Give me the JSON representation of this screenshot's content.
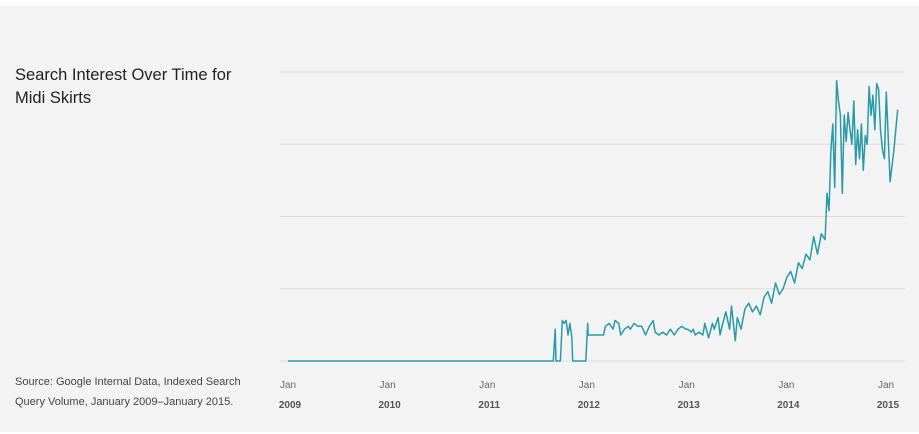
{
  "title": "Search Interest Over Time for Midi Skirts",
  "source": "Source: Google Internal Data, Indexed Search Query Volume, January 2009–January 2015.",
  "colors": {
    "line": "#2a9aa8",
    "grid": "#dcdcdc",
    "background": "#f3f3f3"
  },
  "chart_data": {
    "type": "line",
    "title": "Search Interest Over Time for Midi Skirts",
    "xlabel": "",
    "ylabel": "",
    "x_ticks": [
      {
        "date": "2009-01-01",
        "month": "Jan",
        "year": "2009"
      },
      {
        "date": "2010-01-01",
        "month": "Jan",
        "year": "2010"
      },
      {
        "date": "2011-01-01",
        "month": "Jan",
        "year": "2011"
      },
      {
        "date": "2012-01-01",
        "month": "Jan",
        "year": "2012"
      },
      {
        "date": "2013-01-01",
        "month": "Jan",
        "year": "2013"
      },
      {
        "date": "2014-01-01",
        "month": "Jan",
        "year": "2014"
      },
      {
        "date": "2015-01-01",
        "month": "Jan",
        "year": "2015"
      }
    ],
    "xlim": [
      "2009-01-01",
      "2015-03-01"
    ],
    "ylim": [
      0,
      100
    ],
    "grid": true,
    "y_gridlines": [
      0,
      25,
      50,
      75,
      100
    ],
    "legend": "none",
    "series": [
      {
        "values": [
          [
            "2009-01-01",
            0
          ],
          [
            "2009-07-01",
            0
          ],
          [
            "2010-01-01",
            0
          ],
          [
            "2010-07-01",
            0
          ],
          [
            "2011-01-01",
            0
          ],
          [
            "2011-07-01",
            0
          ],
          [
            "2011-08-31",
            0
          ],
          [
            "2011-09-07",
            11
          ],
          [
            "2011-09-10",
            0
          ],
          [
            "2011-09-26",
            0
          ],
          [
            "2011-10-03",
            14
          ],
          [
            "2011-10-10",
            13
          ],
          [
            "2011-10-17",
            14
          ],
          [
            "2011-10-24",
            9
          ],
          [
            "2011-10-31",
            13
          ],
          [
            "2011-11-07",
            8
          ],
          [
            "2011-11-10",
            0
          ],
          [
            "2011-12-01",
            0
          ],
          [
            "2011-12-28",
            0
          ],
          [
            "2012-01-04",
            13
          ],
          [
            "2012-01-06",
            9
          ],
          [
            "2012-01-20",
            9
          ],
          [
            "2012-02-03",
            9
          ],
          [
            "2012-02-17",
            9
          ],
          [
            "2012-03-02",
            9
          ],
          [
            "2012-03-09",
            12
          ],
          [
            "2012-03-23",
            13
          ],
          [
            "2012-04-06",
            11
          ],
          [
            "2012-04-13",
            14
          ],
          [
            "2012-04-27",
            13
          ],
          [
            "2012-05-04",
            9
          ],
          [
            "2012-05-18",
            11
          ],
          [
            "2012-06-01",
            12
          ],
          [
            "2012-06-08",
            11
          ],
          [
            "2012-06-22",
            13
          ],
          [
            "2012-07-06",
            12
          ],
          [
            "2012-07-20",
            12
          ],
          [
            "2012-08-03",
            9
          ],
          [
            "2012-08-17",
            12
          ],
          [
            "2012-08-31",
            14
          ],
          [
            "2012-09-07",
            10
          ],
          [
            "2012-09-21",
            9
          ],
          [
            "2012-10-05",
            10
          ],
          [
            "2012-10-19",
            9
          ],
          [
            "2012-11-02",
            11
          ],
          [
            "2012-11-16",
            9
          ],
          [
            "2012-11-30",
            11
          ],
          [
            "2012-12-14",
            12
          ],
          [
            "2012-12-28",
            11
          ],
          [
            "2013-01-04",
            11
          ],
          [
            "2013-01-18",
            10
          ],
          [
            "2013-01-25",
            11
          ],
          [
            "2013-02-01",
            9
          ],
          [
            "2013-02-15",
            10
          ],
          [
            "2013-03-01",
            9
          ],
          [
            "2013-03-08",
            13
          ],
          [
            "2013-03-22",
            8
          ],
          [
            "2013-04-05",
            13
          ],
          [
            "2013-04-12",
            11
          ],
          [
            "2013-04-26",
            15
          ],
          [
            "2013-05-03",
            9
          ],
          [
            "2013-05-10",
            12
          ],
          [
            "2013-05-24",
            17
          ],
          [
            "2013-06-07",
            11
          ],
          [
            "2013-06-14",
            19
          ],
          [
            "2013-06-28",
            7
          ],
          [
            "2013-07-05",
            15
          ],
          [
            "2013-07-19",
            11
          ],
          [
            "2013-08-02",
            18
          ],
          [
            "2013-08-16",
            20
          ],
          [
            "2013-08-30",
            17
          ],
          [
            "2013-09-13",
            19
          ],
          [
            "2013-09-27",
            16
          ],
          [
            "2013-10-11",
            22
          ],
          [
            "2013-10-25",
            24
          ],
          [
            "2013-11-08",
            20
          ],
          [
            "2013-11-22",
            27
          ],
          [
            "2013-12-06",
            23
          ],
          [
            "2013-12-20",
            25
          ],
          [
            "2014-01-03",
            29
          ],
          [
            "2014-01-17",
            31
          ],
          [
            "2014-01-31",
            27
          ],
          [
            "2014-02-14",
            34
          ],
          [
            "2014-02-28",
            32
          ],
          [
            "2014-03-14",
            37
          ],
          [
            "2014-03-28",
            35
          ],
          [
            "2014-04-11",
            43
          ],
          [
            "2014-04-25",
            37
          ],
          [
            "2014-05-09",
            44
          ],
          [
            "2014-05-23",
            42
          ],
          [
            "2014-05-30",
            58
          ],
          [
            "2014-06-06",
            52
          ],
          [
            "2014-06-13",
            73
          ],
          [
            "2014-06-20",
            82
          ],
          [
            "2014-06-27",
            60
          ],
          [
            "2014-07-04",
            97
          ],
          [
            "2014-07-11",
            90
          ],
          [
            "2014-07-18",
            85
          ],
          [
            "2014-07-25",
            58
          ],
          [
            "2014-08-01",
            85
          ],
          [
            "2014-08-08",
            76
          ],
          [
            "2014-08-15",
            86
          ],
          [
            "2014-08-22",
            80
          ],
          [
            "2014-08-29",
            75
          ],
          [
            "2014-09-05",
            90
          ],
          [
            "2014-09-12",
            68
          ],
          [
            "2014-09-19",
            80
          ],
          [
            "2014-09-26",
            70
          ],
          [
            "2014-10-03",
            82
          ],
          [
            "2014-10-10",
            66
          ],
          [
            "2014-10-17",
            78
          ],
          [
            "2014-10-24",
            75
          ],
          [
            "2014-10-31",
            95
          ],
          [
            "2014-11-07",
            85
          ],
          [
            "2014-11-14",
            92
          ],
          [
            "2014-11-21",
            80
          ],
          [
            "2014-11-28",
            96
          ],
          [
            "2014-12-05",
            94
          ],
          [
            "2014-12-12",
            80
          ],
          [
            "2014-12-19",
            73
          ],
          [
            "2014-12-26",
            70
          ],
          [
            "2015-01-02",
            93
          ],
          [
            "2015-01-16",
            62
          ],
          [
            "2015-01-30",
            73
          ],
          [
            "2015-02-13",
            87
          ]
        ]
      }
    ]
  }
}
